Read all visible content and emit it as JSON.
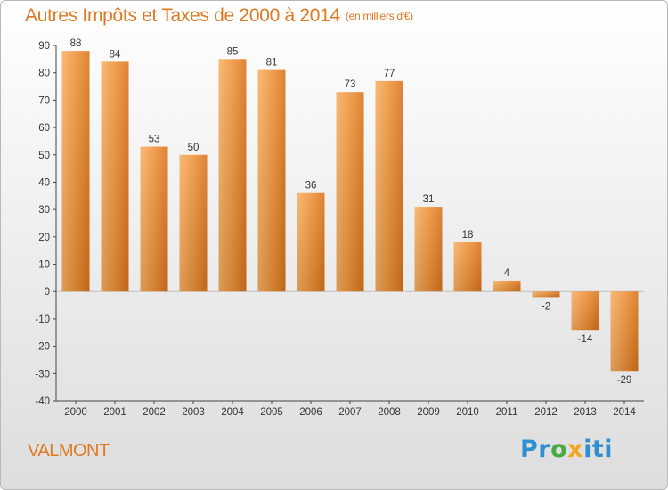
{
  "title": "Autres Impôts et Taxes de 2000 à 2014",
  "unit": "(en milliers d'€)",
  "town": "VALMONT",
  "logo": {
    "part1": "Pr",
    "part2": "o",
    "part3": "x",
    "part4": "iti"
  },
  "colors": {
    "title": "#e07820",
    "bar_light": "#f6a95a",
    "bar_dark": "#cc6a14",
    "axis": "#444444"
  },
  "chart_data": {
    "type": "bar",
    "title": "Autres Impôts et Taxes de 2000 à 2014",
    "subtitle": "(en milliers d'€)",
    "xlabel": "",
    "ylabel": "",
    "categories": [
      "2000",
      "2001",
      "2002",
      "2003",
      "2004",
      "2005",
      "2006",
      "2007",
      "2008",
      "2009",
      "2010",
      "2011",
      "2012",
      "2013",
      "2014"
    ],
    "values": [
      88,
      84,
      53,
      50,
      85,
      81,
      36,
      73,
      77,
      31,
      18,
      4,
      -2,
      -14,
      -29
    ],
    "ylim": [
      -40,
      90
    ],
    "yticks": [
      -40,
      -30,
      -20,
      -10,
      0,
      10,
      20,
      30,
      40,
      50,
      60,
      70,
      80,
      90
    ],
    "grid": false,
    "legend": "none"
  }
}
